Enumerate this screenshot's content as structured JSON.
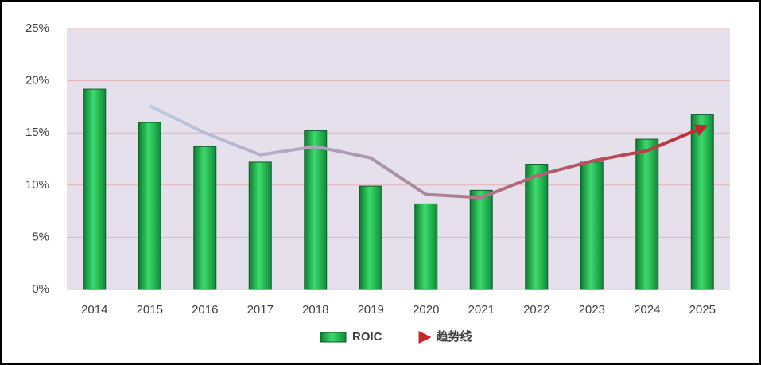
{
  "chart_data": {
    "type": "bar",
    "categories": [
      "2014",
      "2015",
      "2016",
      "2017",
      "2018",
      "2019",
      "2020",
      "2021",
      "2022",
      "2023",
      "2024",
      "2025"
    ],
    "series": [
      {
        "name": "ROIC",
        "type": "bar",
        "color": "#1aa84a",
        "values": [
          19.2,
          16.0,
          13.7,
          12.2,
          15.2,
          9.9,
          8.2,
          9.5,
          12.0,
          12.2,
          14.4,
          16.8
        ]
      },
      {
        "name": "趋势线",
        "type": "line",
        "color": [
          "#bcd3ea",
          "#a88aa0",
          "#c0282e"
        ],
        "values": [
          null,
          17.6,
          15.0,
          12.9,
          13.7,
          12.6,
          9.1,
          8.8,
          10.9,
          12.3,
          13.3,
          15.5
        ]
      }
    ],
    "ylim": [
      0,
      25
    ],
    "yticks": [
      {
        "value": 0,
        "label": "0%"
      },
      {
        "value": 5,
        "label": "5%"
      },
      {
        "value": 10,
        "label": "10%"
      },
      {
        "value": 15,
        "label": "15%"
      },
      {
        "value": 20,
        "label": "20%"
      },
      {
        "value": 25,
        "label": "25%"
      }
    ],
    "grid": true,
    "legend": "bottom"
  }
}
